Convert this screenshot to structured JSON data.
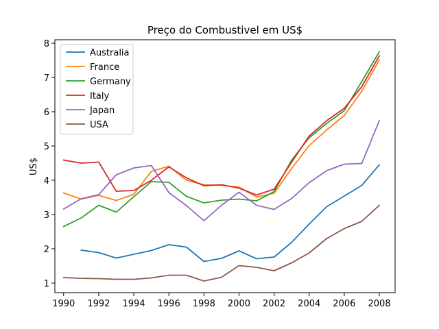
{
  "chart_data": {
    "type": "line",
    "title": "Preço do Combustivel em US$",
    "xlabel": "",
    "ylabel": "US$",
    "xlim": [
      1989.5,
      2008.9
    ],
    "ylim": [
      0.72,
      8.1
    ],
    "x_ticks": [
      1990,
      1992,
      1994,
      1996,
      1998,
      2000,
      2002,
      2004,
      2006,
      2008
    ],
    "y_ticks": [
      1,
      2,
      3,
      4,
      5,
      6,
      7,
      8
    ],
    "grid": false,
    "legend_position": "top-left",
    "x": [
      1990,
      1991,
      1992,
      1993,
      1994,
      1995,
      1996,
      1997,
      1998,
      1999,
      2000,
      2001,
      2002,
      2003,
      2004,
      2005,
      2006,
      2007,
      2008
    ],
    "series": [
      {
        "name": "Australia",
        "color": "#1f77b4",
        "values": [
          null,
          1.96,
          1.89,
          1.73,
          1.84,
          1.95,
          2.12,
          2.05,
          1.63,
          1.72,
          1.94,
          1.71,
          1.76,
          2.19,
          2.72,
          3.23,
          3.54,
          3.85,
          4.45
        ]
      },
      {
        "name": "France",
        "color": "#ff7f0e",
        "values": [
          3.63,
          3.45,
          3.56,
          3.41,
          3.59,
          4.26,
          4.41,
          4.0,
          3.87,
          3.85,
          3.8,
          3.51,
          3.62,
          4.35,
          5.01,
          5.47,
          5.89,
          6.6,
          7.51
        ]
      },
      {
        "name": "Germany",
        "color": "#2ca02c",
        "values": [
          2.65,
          2.9,
          3.27,
          3.07,
          3.52,
          3.96,
          3.94,
          3.53,
          3.34,
          3.42,
          3.45,
          3.4,
          3.67,
          4.59,
          5.24,
          5.66,
          6.03,
          6.88,
          7.75
        ]
      },
      {
        "name": "Italy",
        "color": "#d62728",
        "values": [
          4.59,
          4.5,
          4.53,
          3.68,
          3.7,
          4.0,
          4.39,
          4.07,
          3.84,
          3.87,
          3.77,
          3.57,
          3.74,
          4.53,
          5.29,
          5.74,
          6.1,
          6.73,
          7.63
        ]
      },
      {
        "name": "Japan",
        "color": "#9467bd",
        "values": [
          3.16,
          3.46,
          3.58,
          4.16,
          4.36,
          4.43,
          3.64,
          3.26,
          2.82,
          3.27,
          3.65,
          3.27,
          3.15,
          3.47,
          3.93,
          4.28,
          4.47,
          4.49,
          5.74
        ]
      },
      {
        "name": "USA",
        "color": "#8c564b",
        "values": [
          1.16,
          1.14,
          1.13,
          1.11,
          1.11,
          1.15,
          1.23,
          1.23,
          1.06,
          1.17,
          1.51,
          1.46,
          1.36,
          1.59,
          1.88,
          2.3,
          2.59,
          2.8,
          3.27
        ]
      }
    ]
  }
}
